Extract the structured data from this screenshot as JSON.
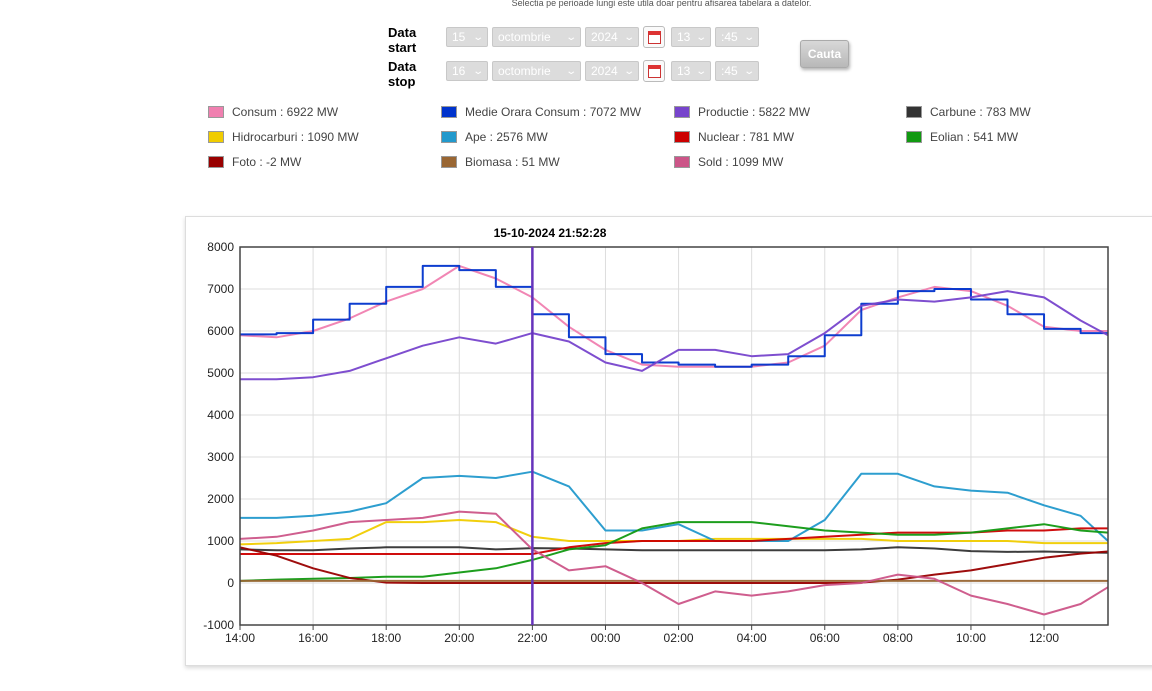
{
  "notice": "Selectia pe perioade lungi este utila doar pentru afisarea tabelara a datelor.",
  "form": {
    "start_label": "Data start",
    "stop_label": "Data stop",
    "start": {
      "day": "15",
      "month": "octombrie",
      "year": "2024",
      "hour": "13",
      "minute": ":45"
    },
    "stop": {
      "day": "16",
      "month": "octombrie",
      "year": "2024",
      "hour": "13",
      "minute": ":45"
    },
    "search_label": "Cauta"
  },
  "legend": [
    {
      "label": "Consum : 6922 MW",
      "color": "#f080b0"
    },
    {
      "label": "Medie Orara Consum : 7072 MW",
      "color": "#0033cc"
    },
    {
      "label": "Productie : 5822 MW",
      "color": "#7744cc"
    },
    {
      "label": "Carbune : 783 MW",
      "color": "#333333"
    },
    {
      "label": "Hidrocarburi : 1090 MW",
      "color": "#f0cc00"
    },
    {
      "label": "Ape : 2576 MW",
      "color": "#2299cc"
    },
    {
      "label": "Nuclear : 781 MW",
      "color": "#cc0000"
    },
    {
      "label": "Eolian : 541 MW",
      "color": "#119911"
    },
    {
      "label": "Foto : -2 MW",
      "color": "#990000"
    },
    {
      "label": "Biomasa : 51 MW",
      "color": "#996633"
    },
    {
      "label": "Sold : 1099 MW",
      "color": "#cc5588"
    }
  ],
  "chart_data": {
    "type": "line",
    "cursor_label": "15-10-2024 21:52:28",
    "cursor_x": 22.0,
    "xlim": [
      14,
      37.75
    ],
    "ylim": [
      -1000,
      8000
    ],
    "yticks": [
      -1000,
      0,
      1000,
      2000,
      3000,
      4000,
      5000,
      6000,
      7000,
      8000
    ],
    "xticks": [
      {
        "v": 14,
        "label": "14:00"
      },
      {
        "v": 16,
        "label": "16:00"
      },
      {
        "v": 18,
        "label": "18:00"
      },
      {
        "v": 20,
        "label": "20:00"
      },
      {
        "v": 22,
        "label": "22:00"
      },
      {
        "v": 24,
        "label": "00:00"
      },
      {
        "v": 26,
        "label": "02:00"
      },
      {
        "v": 28,
        "label": "04:00"
      },
      {
        "v": 30,
        "label": "06:00"
      },
      {
        "v": 32,
        "label": "08:00"
      },
      {
        "v": 34,
        "label": "10:00"
      },
      {
        "v": 36,
        "label": "12:00"
      }
    ],
    "grid": true,
    "x_hours": [
      14,
      15,
      16,
      17,
      18,
      19,
      20,
      21,
      22,
      23,
      24,
      25,
      26,
      27,
      28,
      29,
      30,
      31,
      32,
      33,
      34,
      35,
      36,
      37,
      37.75
    ],
    "series": [
      {
        "name": "Consum",
        "color": "#f080b0",
        "step": false,
        "values": [
          5900,
          5850,
          6000,
          6300,
          6700,
          7000,
          7550,
          7250,
          6800,
          6100,
          5550,
          5200,
          5150,
          5150,
          5150,
          5250,
          5650,
          6500,
          6800,
          7050,
          6950,
          6600,
          6100,
          6000,
          6000
        ]
      },
      {
        "name": "Medie Orara Consum",
        "color": "#0033cc",
        "step": true,
        "values": [
          5920,
          5950,
          6270,
          6650,
          7050,
          7550,
          7450,
          7050,
          6400,
          5850,
          5450,
          5250,
          5200,
          5150,
          5200,
          5400,
          5900,
          6650,
          6950,
          7000,
          6750,
          6400,
          6050,
          5950,
          5950
        ]
      },
      {
        "name": "Productie",
        "color": "#7744cc",
        "step": false,
        "values": [
          4850,
          4850,
          4900,
          5050,
          5350,
          5650,
          5850,
          5700,
          5950,
          5750,
          5250,
          5050,
          5550,
          5550,
          5400,
          5450,
          5950,
          6600,
          6750,
          6700,
          6800,
          6950,
          6800,
          6250,
          5900
        ]
      },
      {
        "name": "Carbune",
        "color": "#333333",
        "step": false,
        "values": [
          800,
          780,
          780,
          820,
          850,
          850,
          850,
          800,
          830,
          820,
          800,
          780,
          780,
          780,
          780,
          780,
          780,
          800,
          850,
          820,
          760,
          740,
          750,
          730,
          720
        ]
      },
      {
        "name": "Hidrocarburi",
        "color": "#f0cc00",
        "step": false,
        "values": [
          920,
          950,
          1000,
          1050,
          1450,
          1450,
          1500,
          1450,
          1100,
          1000,
          1000,
          1000,
          1000,
          1050,
          1050,
          1050,
          1050,
          1050,
          1000,
          1000,
          1000,
          1000,
          950,
          950,
          950
        ]
      },
      {
        "name": "Ape",
        "color": "#2299cc",
        "step": false,
        "values": [
          1550,
          1550,
          1600,
          1700,
          1900,
          2500,
          2550,
          2500,
          2650,
          2300,
          1250,
          1250,
          1400,
          1000,
          1000,
          1000,
          1500,
          2600,
          2600,
          2300,
          2200,
          2150,
          1850,
          1600,
          1000
        ]
      },
      {
        "name": "Nuclear",
        "color": "#cc0000",
        "step": false,
        "values": [
          690,
          690,
          690,
          690,
          690,
          690,
          690,
          690,
          690,
          850,
          950,
          1000,
          1000,
          1000,
          1000,
          1050,
          1100,
          1150,
          1200,
          1200,
          1200,
          1250,
          1250,
          1300,
          1300
        ]
      },
      {
        "name": "Eolian",
        "color": "#119911",
        "step": false,
        "values": [
          50,
          80,
          100,
          120,
          150,
          150,
          250,
          350,
          550,
          800,
          900,
          1300,
          1450,
          1450,
          1450,
          1350,
          1250,
          1200,
          1150,
          1150,
          1200,
          1300,
          1400,
          1250,
          1200
        ]
      },
      {
        "name": "Foto",
        "color": "#990000",
        "step": false,
        "values": [
          850,
          650,
          350,
          120,
          10,
          0,
          0,
          0,
          0,
          0,
          0,
          0,
          0,
          0,
          0,
          0,
          0,
          10,
          80,
          200,
          300,
          450,
          600,
          700,
          750
        ]
      },
      {
        "name": "Biomasa",
        "color": "#996633",
        "step": false,
        "values": [
          50,
          50,
          50,
          50,
          50,
          50,
          50,
          50,
          50,
          50,
          50,
          50,
          50,
          50,
          50,
          50,
          50,
          50,
          50,
          50,
          50,
          50,
          50,
          50,
          50
        ]
      },
      {
        "name": "Sold",
        "color": "#cc5588",
        "step": false,
        "values": [
          1050,
          1100,
          1250,
          1450,
          1500,
          1550,
          1700,
          1650,
          800,
          300,
          400,
          0,
          -500,
          -200,
          -300,
          -200,
          -50,
          0,
          200,
          100,
          -300,
          -500,
          -750,
          -500,
          -100
        ]
      }
    ]
  }
}
